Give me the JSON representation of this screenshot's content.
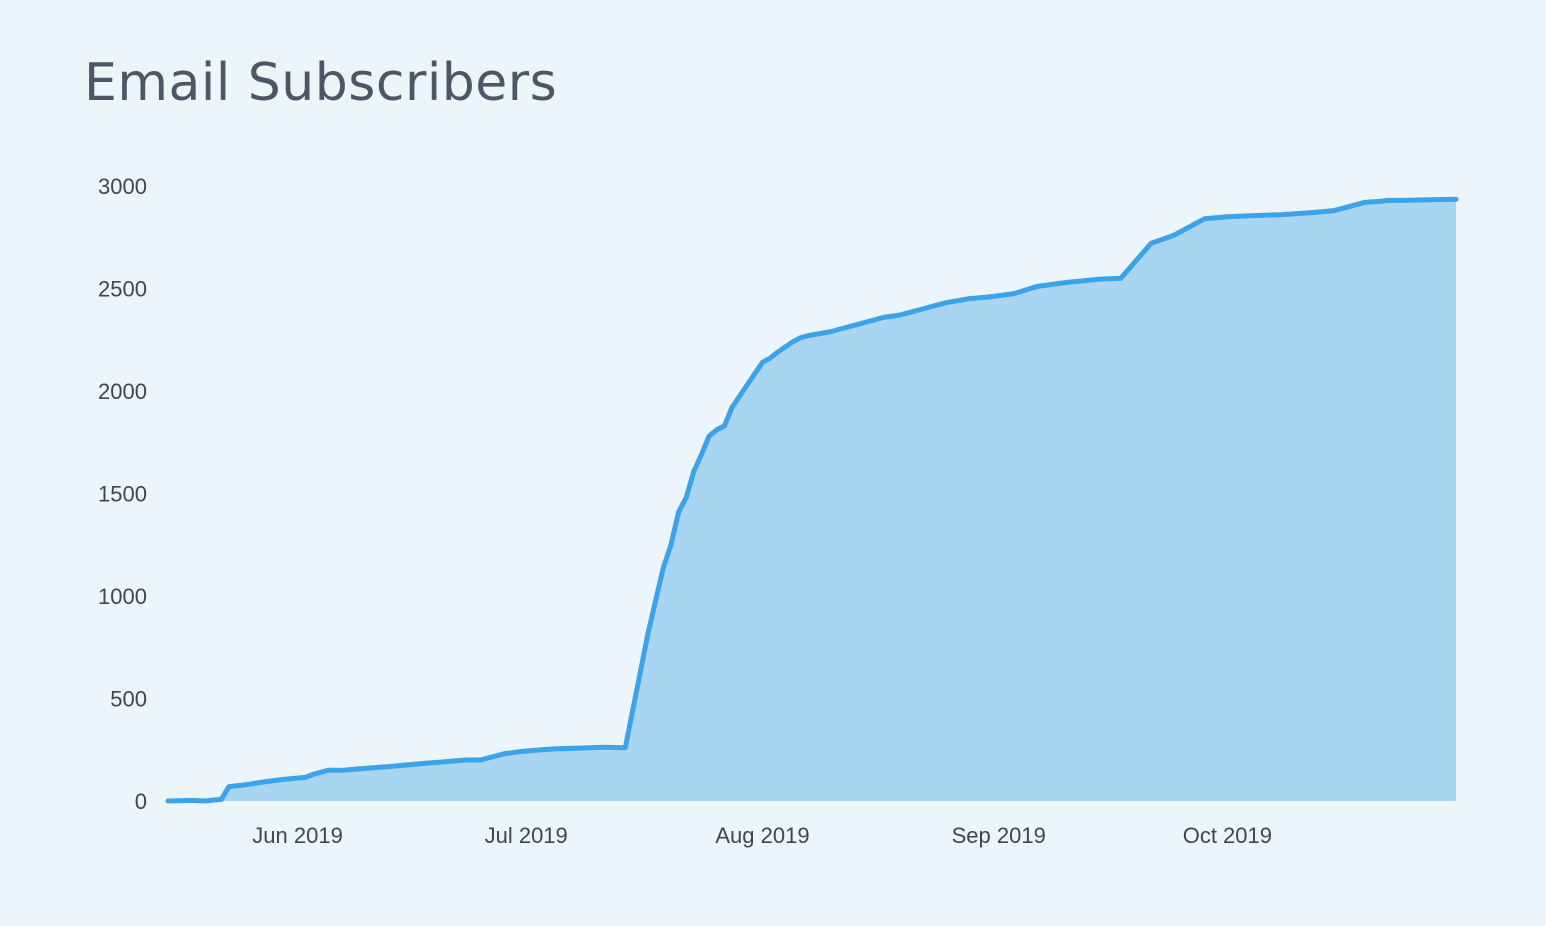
{
  "chart_data": {
    "type": "area",
    "title": "Email Subscribers",
    "xlabel": "",
    "ylabel": "",
    "ylim": [
      0,
      3000
    ],
    "y_ticks": [
      0,
      500,
      1000,
      1500,
      2000,
      2500,
      3000
    ],
    "x_ticks": [
      {
        "label": "Jun 2019",
        "date": "2019-06-01"
      },
      {
        "label": "Jul 2019",
        "date": "2019-07-01"
      },
      {
        "label": "Aug 2019",
        "date": "2019-08-01"
      },
      {
        "label": "Sep 2019",
        "date": "2019-09-01"
      },
      {
        "label": "Oct 2019",
        "date": "2019-10-01"
      }
    ],
    "xlim": [
      "2019-05-15",
      "2019-10-31"
    ],
    "grid": false,
    "legend": "none",
    "series_color": "#3da3e8",
    "fill_color": "#a8d5f2",
    "series": [
      {
        "x": [
          "2019-05-15",
          "2019-05-18",
          "2019-05-20",
          "2019-05-21",
          "2019-05-22",
          "2019-05-23",
          "2019-05-25",
          "2019-05-27",
          "2019-05-30",
          "2019-06-02",
          "2019-06-03",
          "2019-06-05",
          "2019-06-07",
          "2019-06-10",
          "2019-06-13",
          "2019-06-15",
          "2019-06-18",
          "2019-06-20",
          "2019-06-23",
          "2019-06-25",
          "2019-06-28",
          "2019-06-30",
          "2019-07-03",
          "2019-07-05",
          "2019-07-08",
          "2019-07-11",
          "2019-07-14",
          "2019-07-17",
          "2019-07-19",
          "2019-07-20",
          "2019-07-21",
          "2019-07-22",
          "2019-07-23",
          "2019-07-24",
          "2019-07-25",
          "2019-07-26",
          "2019-07-27",
          "2019-07-28",
          "2019-07-30",
          "2019-08-01",
          "2019-08-02",
          "2019-08-03",
          "2019-08-05",
          "2019-08-06",
          "2019-08-07",
          "2019-08-10",
          "2019-08-12",
          "2019-08-15",
          "2019-08-17",
          "2019-08-19",
          "2019-08-22",
          "2019-08-25",
          "2019-08-28",
          "2019-08-31",
          "2019-09-03",
          "2019-09-06",
          "2019-09-10",
          "2019-09-14",
          "2019-09-17",
          "2019-09-21",
          "2019-09-24",
          "2019-09-25",
          "2019-09-26",
          "2019-09-28",
          "2019-10-01",
          "2019-10-04",
          "2019-10-08",
          "2019-10-12",
          "2019-10-15",
          "2019-10-19",
          "2019-10-21",
          "2019-10-22",
          "2019-10-24",
          "2019-10-27",
          "2019-10-31"
        ],
        "values": [
          0,
          3,
          0,
          5,
          8,
          70,
          78,
          90,
          105,
          115,
          130,
          150,
          150,
          160,
          168,
          175,
          185,
          190,
          200,
          200,
          230,
          240,
          250,
          255,
          258,
          262,
          260,
          820,
          1140,
          1250,
          1410,
          1480,
          1610,
          1690,
          1780,
          1810,
          1830,
          1920,
          2030,
          2140,
          2160,
          2190,
          2240,
          2260,
          2270,
          2290,
          2310,
          2340,
          2360,
          2370,
          2400,
          2430,
          2450,
          2460,
          2475,
          2510,
          2530,
          2545,
          2550,
          2720,
          2760,
          2780,
          2800,
          2840,
          2850,
          2855,
          2860,
          2870,
          2880,
          2920,
          2925,
          2930,
          2930,
          2932,
          2935
        ]
      }
    ]
  }
}
